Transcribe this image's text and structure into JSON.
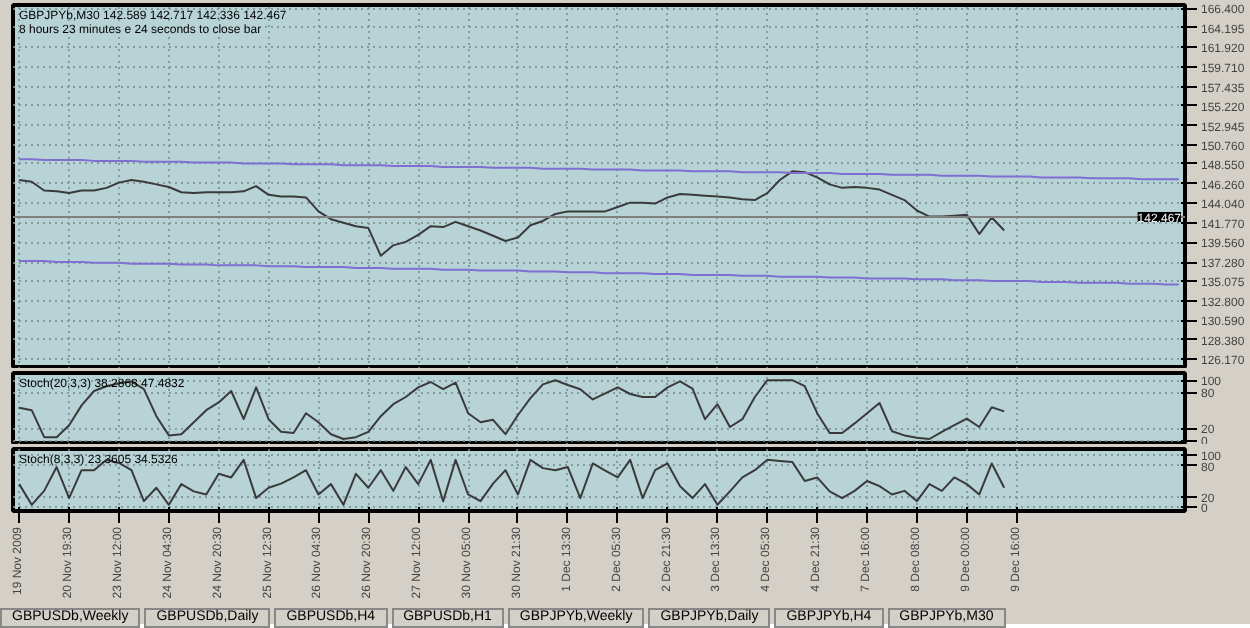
{
  "chart_data": [
    {
      "type": "line",
      "title": "GBPJPYb,M30  142.589 142.717 142.336 142.467",
      "subtitle": "8 hours 23 minutes e 24 seconds to close bar",
      "categories": [
        null,
        null,
        null,
        null,
        null,
        null,
        null,
        null,
        null,
        null,
        null,
        null,
        null,
        null,
        null,
        null,
        null,
        null,
        null,
        null,
        null,
        null,
        null,
        null,
        null,
        null,
        null,
        null,
        null,
        null,
        null,
        null,
        null,
        null,
        null,
        null,
        null,
        null,
        null,
        null,
        null,
        null,
        null,
        null,
        null,
        null,
        null,
        null,
        null,
        null,
        null,
        null,
        null,
        null,
        null,
        null,
        null,
        null,
        null,
        null,
        null,
        null,
        null,
        null,
        null,
        null,
        null,
        null,
        null,
        null,
        null,
        null,
        null,
        null,
        null,
        null,
        null,
        null,
        null,
        null,
        null,
        null,
        null,
        null,
        null,
        null,
        null,
        null,
        null,
        null,
        null,
        null,
        null,
        null
      ],
      "ylim": [
        125.0,
        166.8
      ],
      "yticks": [
        {
          "value": 166.4,
          "label": "166.400"
        },
        {
          "value": 164.195,
          "label": "164.195"
        },
        {
          "value": 161.92,
          "label": "161.920"
        },
        {
          "value": 159.71,
          "label": "159.710"
        },
        {
          "value": 157.435,
          "label": "157.435"
        },
        {
          "value": 155.22,
          "label": "155.220"
        },
        {
          "value": 152.945,
          "label": "152.945"
        },
        {
          "value": 150.76,
          "label": "150.760"
        },
        {
          "value": 148.55,
          "label": "148.550"
        },
        {
          "value": 146.26,
          "label": "146.260"
        },
        {
          "value": 144.04,
          "label": "144.040"
        },
        {
          "value": 141.77,
          "label": "141.770"
        },
        {
          "value": 139.56,
          "label": "139.560"
        },
        {
          "value": 137.28,
          "label": "137.280"
        },
        {
          "value": 135.075,
          "label": "135.075"
        },
        {
          "value": 132.8,
          "label": "132.800"
        },
        {
          "value": 130.59,
          "label": "130.590"
        },
        {
          "value": 128.38,
          "label": "128.380"
        },
        {
          "value": 126.17,
          "label": "126.170"
        }
      ],
      "tick_labels": "y",
      "grid": true,
      "ref_lines": [
        {
          "axis": "y",
          "value": 142.467,
          "label": "142.467",
          "color": "#808080"
        }
      ],
      "series": [
        {
          "color": "#3a3a3a",
          "values": [
            146.7,
            146.5,
            145.5,
            145.4,
            145.2,
            145.5,
            145.5,
            145.8,
            146.4,
            146.7,
            146.5,
            146.2,
            145.9,
            145.3,
            145.2,
            145.3,
            145.3,
            145.3,
            145.4,
            146.0,
            145.0,
            144.8,
            144.8,
            144.7,
            143.1,
            142.2,
            141.8,
            141.4,
            141.2,
            138.0,
            139.2,
            139.6,
            140.4,
            141.4,
            141.3,
            141.9,
            141.4,
            140.9,
            140.3,
            139.7,
            140.1,
            141.5,
            142.0,
            142.8,
            143.1,
            143.1,
            143.1,
            143.1,
            143.6,
            144.1,
            144.1,
            144.0,
            144.7,
            145.1,
            145.0,
            144.9,
            144.8,
            144.7,
            144.5,
            144.4,
            145.2,
            146.7,
            147.7,
            147.6,
            147.0,
            146.2,
            145.8,
            145.9,
            145.8,
            145.6,
            145.0,
            144.4,
            143.2,
            142.5,
            142.5,
            142.6,
            142.7,
            140.5,
            142.4,
            140.9,
            null,
            null,
            null,
            null,
            null,
            null,
            null,
            null,
            null,
            null,
            null,
            null,
            null,
            null
          ]
        },
        {
          "color": "#7e6fd0",
          "values": [
            149.1,
            149.1,
            149.0,
            149.0,
            149.0,
            149.0,
            148.9,
            148.9,
            148.9,
            148.9,
            148.8,
            148.8,
            148.8,
            148.8,
            148.7,
            148.7,
            148.7,
            148.7,
            148.6,
            148.6,
            148.6,
            148.6,
            148.5,
            148.5,
            148.5,
            148.5,
            148.4,
            148.4,
            148.4,
            148.4,
            148.3,
            148.3,
            148.3,
            148.3,
            148.2,
            148.2,
            148.2,
            148.2,
            148.1,
            148.1,
            148.1,
            148.1,
            148.0,
            148.0,
            148.0,
            148.0,
            147.9,
            147.9,
            147.9,
            147.9,
            147.8,
            147.8,
            147.8,
            147.8,
            147.7,
            147.7,
            147.7,
            147.7,
            147.6,
            147.6,
            147.6,
            147.6,
            147.5,
            147.5,
            147.5,
            147.5,
            147.4,
            147.4,
            147.4,
            147.4,
            147.3,
            147.3,
            147.3,
            147.3,
            147.2,
            147.2,
            147.2,
            147.2,
            147.1,
            147.1,
            147.1,
            147.1,
            147.0,
            147.0,
            147.0,
            147.0,
            146.9,
            146.9,
            146.9,
            146.9,
            146.8,
            146.8,
            146.8,
            146.8
          ]
        },
        {
          "color": "#7e6fd0",
          "values": [
            137.4,
            137.4,
            137.4,
            137.3,
            137.3,
            137.3,
            137.2,
            137.2,
            137.2,
            137.1,
            137.1,
            137.1,
            137.1,
            137.0,
            137.0,
            137.0,
            136.9,
            136.9,
            136.9,
            136.9,
            136.8,
            136.8,
            136.8,
            136.7,
            136.7,
            136.7,
            136.7,
            136.6,
            136.6,
            136.6,
            136.5,
            136.5,
            136.5,
            136.5,
            136.4,
            136.4,
            136.4,
            136.3,
            136.3,
            136.3,
            136.3,
            136.2,
            136.2,
            136.2,
            136.1,
            136.1,
            136.1,
            136.0,
            136.0,
            136.0,
            136.0,
            135.9,
            135.9,
            135.9,
            135.8,
            135.8,
            135.8,
            135.8,
            135.7,
            135.7,
            135.7,
            135.6,
            135.6,
            135.6,
            135.6,
            135.5,
            135.5,
            135.5,
            135.4,
            135.4,
            135.4,
            135.4,
            135.3,
            135.3,
            135.3,
            135.2,
            135.2,
            135.2,
            135.1,
            135.1,
            135.1,
            135.1,
            135.0,
            135.0,
            135.0,
            134.9,
            134.9,
            134.9,
            134.9,
            134.8,
            134.8,
            134.8,
            134.7,
            134.7
          ]
        }
      ]
    },
    {
      "type": "line",
      "title": "Stoch(20,3,3) 38.2868 47.4832",
      "categories": [
        null,
        null,
        null,
        null,
        null,
        null,
        null,
        null,
        null,
        null,
        null,
        null,
        null,
        null,
        null,
        null,
        null,
        null,
        null,
        null,
        null,
        null,
        null,
        null,
        null,
        null,
        null,
        null,
        null,
        null,
        null,
        null,
        null,
        null,
        null,
        null,
        null,
        null,
        null,
        null,
        null,
        null,
        null,
        null,
        null,
        null,
        null,
        null,
        null,
        null,
        null,
        null,
        null,
        null,
        null,
        null,
        null,
        null,
        null,
        null,
        null,
        null,
        null,
        null,
        null,
        null,
        null,
        null,
        null,
        null,
        null,
        null,
        null,
        null,
        null,
        null,
        null,
        null,
        null,
        null,
        null,
        null,
        null,
        null,
        null,
        null,
        null,
        null,
        null,
        null,
        null,
        null,
        null,
        null
      ],
      "ylim": [
        -8,
        112
      ],
      "yticks": [
        0,
        20,
        80,
        100
      ],
      "tick_labels": "y",
      "grid": true,
      "series": [
        {
          "color": "#3a3a3a",
          "values": [
            54,
            50,
            5,
            5,
            25,
            58,
            82,
            90,
            95,
            98,
            85,
            40,
            8,
            10,
            30,
            50,
            63,
            82,
            35,
            88,
            35,
            14,
            12,
            45,
            30,
            10,
            2,
            5,
            14,
            40,
            60,
            72,
            88,
            97,
            85,
            96,
            45,
            30,
            34,
            10,
            42,
            70,
            93,
            100,
            92,
            85,
            68,
            78,
            88,
            77,
            72,
            72,
            88,
            98,
            86,
            35,
            60,
            22,
            35,
            72,
            100,
            100,
            100,
            90,
            45,
            12,
            12,
            28,
            45,
            62,
            15,
            8,
            4,
            2,
            14,
            25,
            36,
            22,
            55,
            48,
            null,
            null,
            null,
            null,
            null,
            null,
            null,
            null,
            null,
            null,
            null,
            null,
            null,
            null
          ]
        }
      ]
    },
    {
      "type": "line",
      "title": "Stoch(8,3,3) 23.3605 34.5326",
      "categories": [
        "19 Nov 2009",
        null,
        null,
        null,
        "20 Nov 19:30",
        null,
        null,
        null,
        "23 Nov 12:00",
        null,
        null,
        null,
        "24 Nov 04:30",
        null,
        null,
        null,
        "24 Nov 20:30",
        null,
        null,
        null,
        "25 Nov 12:30",
        null,
        null,
        null,
        "26 Nov 04:30",
        null,
        null,
        null,
        "26 Nov 20:30",
        null,
        null,
        null,
        "27 Nov 12:00",
        null,
        null,
        null,
        "30 Nov 05:00",
        null,
        null,
        null,
        "30 Nov 21:30",
        null,
        null,
        null,
        "1 Dec 13:30",
        null,
        null,
        null,
        "2 Dec 05:30",
        null,
        null,
        null,
        "2 Dec 21:30",
        null,
        null,
        null,
        "3 Dec 13:30",
        null,
        null,
        null,
        "4 Dec 05:30",
        null,
        null,
        null,
        "4 Dec 21:30",
        null,
        null,
        null,
        "7 Dec 16:00",
        null,
        null,
        null,
        "8 Dec 08:00",
        null,
        null,
        null,
        "9 Dec 00:00",
        null,
        null,
        null,
        "9 Dec 16:00",
        null,
        null,
        null,
        null,
        null,
        null,
        null,
        null,
        null,
        null,
        null,
        null,
        null
      ],
      "ylim": [
        -8,
        112
      ],
      "yticks": [
        0,
        20,
        80,
        100
      ],
      "grid": true,
      "annotations": [
        "GBPUSDb,Weekly",
        "GBPUSDb,Daily",
        "GBPUSDb,H4",
        "GBPUSDb,H1",
        "GBPJPYb,Weekly",
        "GBPJPYb,Daily",
        "GBPJPYb,H4",
        "GBPJPYb,M30"
      ],
      "series": [
        {
          "color": "#3a3a3a",
          "values": [
            44,
            4,
            31,
            77,
            17,
            71,
            71,
            91,
            85,
            71,
            11,
            37,
            4,
            44,
            30,
            24,
            64,
            57,
            91,
            17,
            37,
            45,
            57,
            71,
            24,
            44,
            4,
            64,
            37,
            71,
            31,
            77,
            44,
            91,
            11,
            91,
            24,
            11,
            45,
            71,
            24,
            91,
            75,
            71,
            77,
            17,
            84,
            70,
            57,
            91,
            17,
            71,
            84,
            40,
            17,
            44,
            4,
            30,
            57,
            71,
            91,
            89,
            87,
            50,
            57,
            30,
            17,
            31,
            50,
            40,
            24,
            31,
            11,
            44,
            31,
            57,
            44,
            24,
            84,
            37,
            null,
            null,
            null,
            null,
            null,
            null,
            null,
            null,
            null,
            null,
            null,
            null,
            null,
            null
          ]
        }
      ]
    }
  ]
}
